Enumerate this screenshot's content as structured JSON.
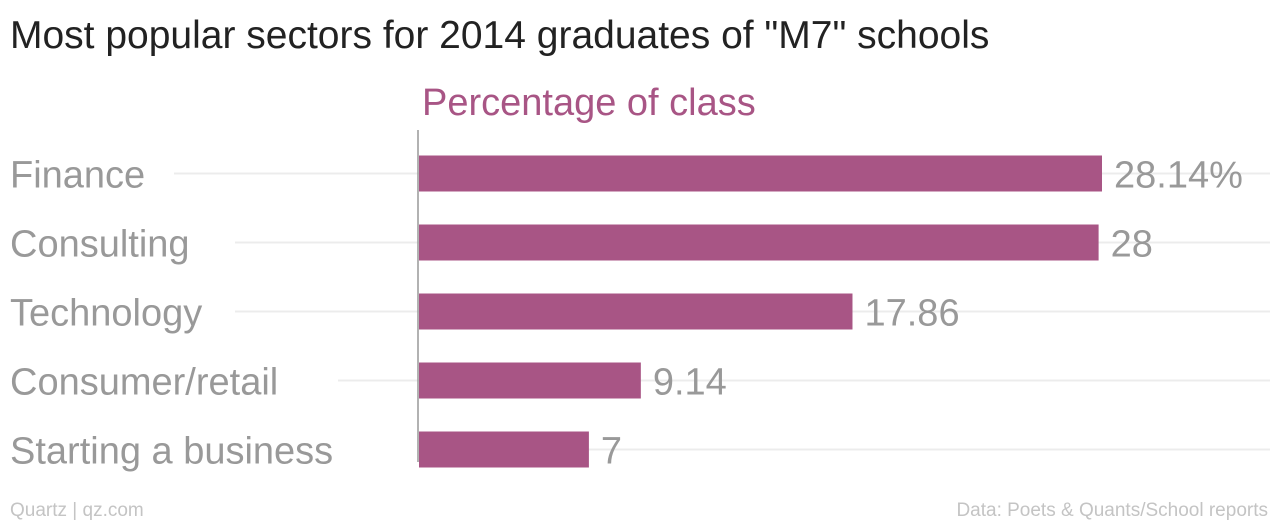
{
  "header": {
    "title": "Most popular sectors for 2014 graduates of \"M7\" schools"
  },
  "footer": {
    "credit": "Quartz | qz.com",
    "source": "Data: Poets & Quants/School reports"
  },
  "colors": {
    "bar": "#a85585",
    "subtitle": "#a85585",
    "label": "#999999",
    "gridline": "#ececec",
    "axis": "#999999"
  },
  "chart_data": {
    "type": "bar",
    "orientation": "horizontal",
    "subtitle": "Percentage of class",
    "categories": [
      "Finance",
      "Consulting",
      "Technology",
      "Consumer/retail",
      "Starting a business"
    ],
    "values": [
      28.14,
      28,
      17.86,
      9.14,
      7
    ],
    "value_labels": [
      "28.14%",
      "28",
      "17.86",
      "9.14",
      "7"
    ],
    "xlim": [
      0,
      28.14
    ],
    "grid": true,
    "legend": "none"
  }
}
